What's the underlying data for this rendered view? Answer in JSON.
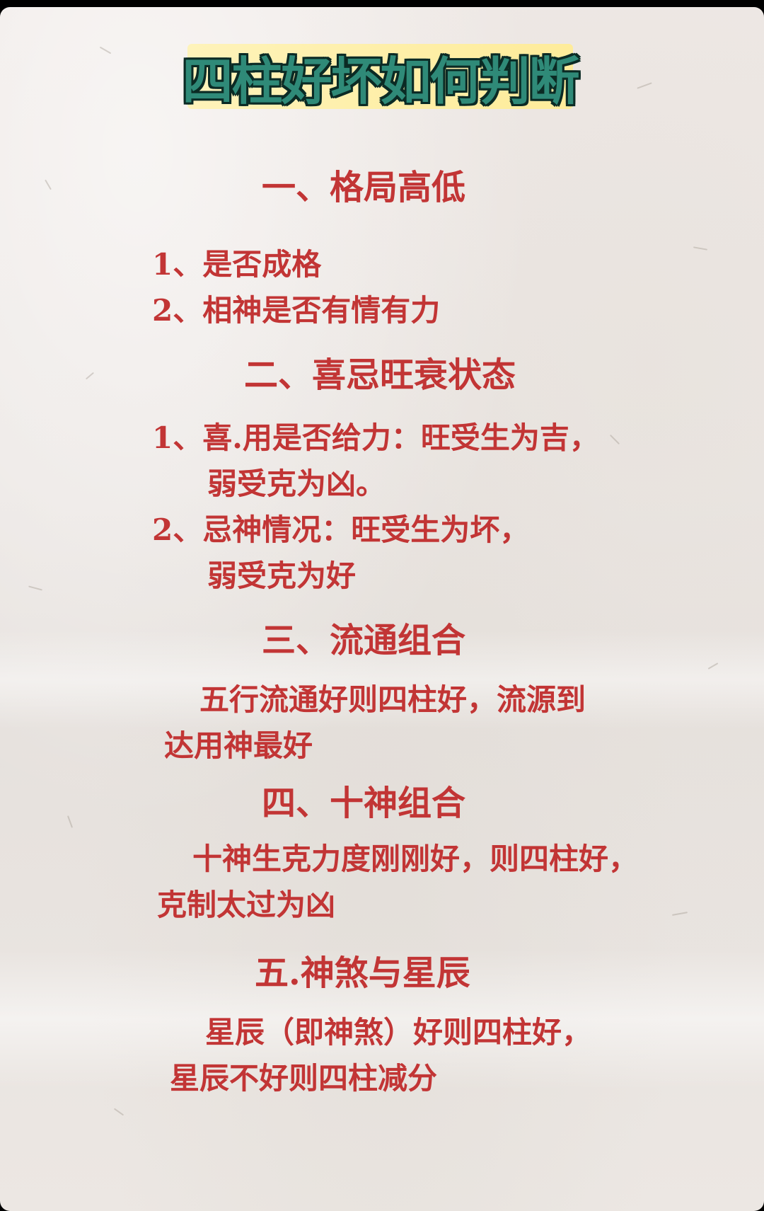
{
  "title": "四柱好坏如何判断",
  "sections": [
    {
      "heading": "一、格局高低",
      "lines": [
        "1、是否成格",
        "2、相神是否有情有力"
      ]
    },
    {
      "heading": "二、喜忌旺衰状态",
      "lines": [
        "1、喜.用是否给力：旺受生为吉，",
        "弱受克为凶。",
        "2、忌神情况：旺受生为坏，",
        "弱受克为好"
      ]
    },
    {
      "heading": "三、流通组合",
      "lines": [
        "五行流通好则四柱好，流源到",
        "达用神最好"
      ]
    },
    {
      "heading": "四、十神组合",
      "lines": [
        "十神生克力度刚刚好，则四柱好，",
        "克制太过为凶"
      ]
    },
    {
      "heading": "五.神煞与星辰",
      "lines": [
        "星辰（即神煞）好则四柱好，",
        "星辰不好则四柱减分"
      ]
    }
  ],
  "colors": {
    "text": "#c23535",
    "title_fill": "#2f8a78",
    "title_highlight": "#fff0a8"
  }
}
